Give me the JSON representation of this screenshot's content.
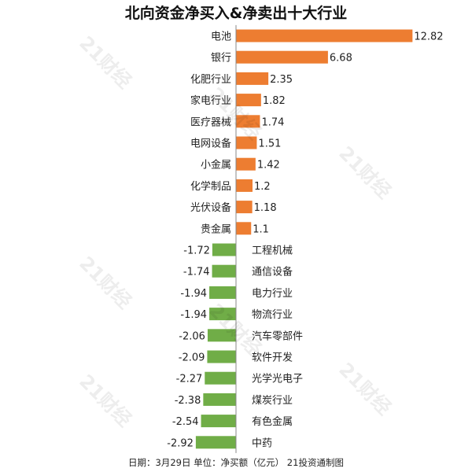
{
  "chart_data": {
    "type": "bar",
    "orientation": "horizontal",
    "title": "北向资金净买入&净卖出十大行业",
    "categories": [
      "电池",
      "银行",
      "化肥行业",
      "家电行业",
      "医疗器械",
      "电网设备",
      "小金属",
      "化学制品",
      "光伏设备",
      "贵金属",
      "工程机械",
      "通信设备",
      "电力行业",
      "物流行业",
      "汽车零部件",
      "软件开发",
      "光学光电子",
      "煤炭行业",
      "有色金属",
      "中药"
    ],
    "values": [
      12.82,
      6.68,
      2.35,
      1.82,
      1.74,
      1.51,
      1.42,
      1.2,
      1.18,
      1.1,
      -1.72,
      -1.74,
      -1.94,
      -1.94,
      -2.06,
      -2.09,
      -2.27,
      -2.38,
      -2.54,
      -2.92
    ],
    "value_labels": [
      "12.82",
      "6.68",
      "2.35",
      "1.82",
      "1.74",
      "1.51",
      "1.42",
      "1.2",
      "1.18",
      "1.1",
      "-1.72",
      "-1.74",
      "-1.94",
      "-1.94",
      "-2.06",
      "-2.09",
      "-2.27",
      "-2.38",
      "-2.54",
      "-2.92"
    ],
    "footer": "日期：3月29日 单位：净买额（亿元） 21投资通制图",
    "grid": false,
    "legend": "none",
    "colors": {
      "positive": "#ED7D31",
      "negative": "#70AD47",
      "axis": "#888888",
      "text": "#222222"
    }
  },
  "watermark": "21财经"
}
